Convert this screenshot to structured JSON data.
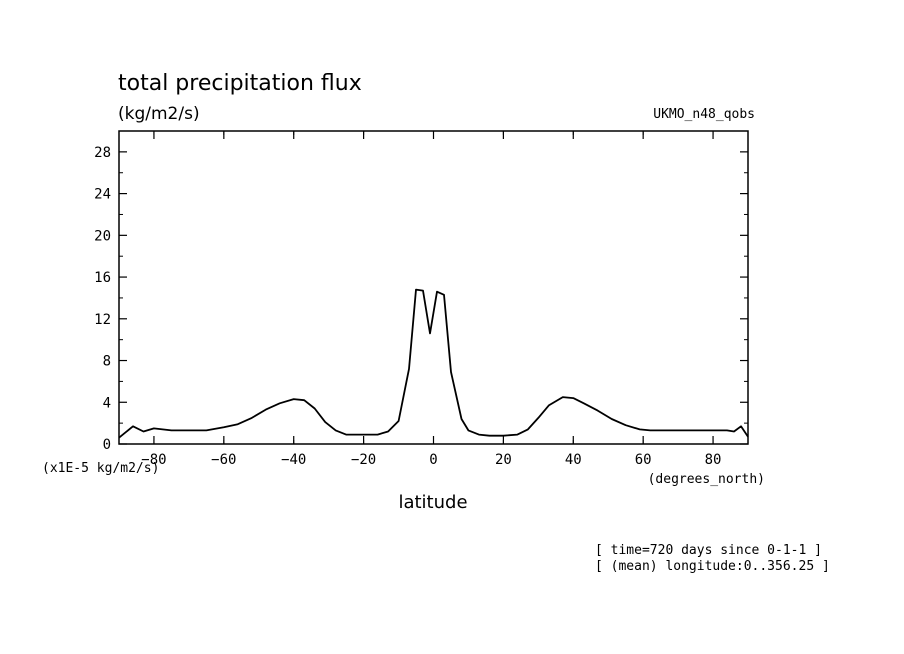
{
  "chart_data": {
    "type": "line",
    "title": "total precipitation flux",
    "units_label": "(kg/m2/s)",
    "dataset_label": "UKMO_n48_qobs",
    "xlabel": "latitude",
    "x_units": "(degrees_north)",
    "y_scale_label": "(x1E-5 kg/m2/s)",
    "footer_lines": [
      "[ time=720 days since 0-1-1 ]",
      "[ (mean) longitude:0..356.25 ]"
    ],
    "xlim": [
      -90,
      90
    ],
    "ylim": [
      0,
      30
    ],
    "x_ticks": [
      -80,
      -60,
      -40,
      -20,
      0,
      20,
      40,
      60,
      80
    ],
    "y_ticks": [
      0,
      4,
      8,
      12,
      16,
      20,
      24,
      28
    ],
    "grid": false,
    "series": [
      {
        "x": [
          -90,
          -86,
          -83,
          -80,
          -75,
          -70,
          -65,
          -60,
          -56,
          -52,
          -48,
          -44,
          -40,
          -37,
          -34,
          -31,
          -28,
          -25,
          -20,
          -16,
          -13,
          -10,
          -7,
          -5,
          -3,
          -1,
          1,
          3,
          5,
          8,
          10,
          13,
          16,
          20,
          24,
          27,
          30,
          33,
          37,
          40,
          43,
          47,
          51,
          55,
          59,
          62,
          66,
          70,
          75,
          80,
          84,
          86,
          88,
          90
        ],
        "y": [
          0.6,
          1.7,
          1.2,
          1.5,
          1.3,
          1.3,
          1.3,
          1.6,
          1.9,
          2.5,
          3.3,
          3.9,
          4.3,
          4.2,
          3.4,
          2.1,
          1.3,
          0.9,
          0.9,
          0.9,
          1.2,
          2.2,
          7.2,
          14.8,
          14.7,
          10.6,
          14.6,
          14.3,
          6.9,
          2.4,
          1.3,
          0.9,
          0.8,
          0.8,
          0.9,
          1.4,
          2.5,
          3.7,
          4.5,
          4.4,
          3.9,
          3.2,
          2.4,
          1.8,
          1.4,
          1.3,
          1.3,
          1.3,
          1.3,
          1.3,
          1.3,
          1.2,
          1.7,
          0.7
        ]
      }
    ]
  }
}
